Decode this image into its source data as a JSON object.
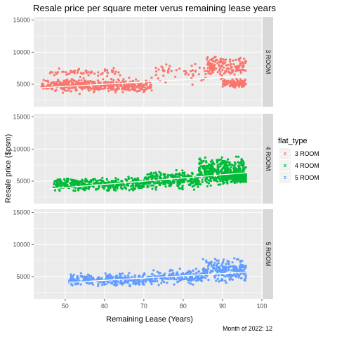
{
  "chart_data": {
    "type": "scatter",
    "title": "Resale price per square meter verus remaining lease years",
    "xlabel": "Remaining Lease (Years)",
    "ylabel": "Resale price ($psm)",
    "caption": "Month of 2022: 12",
    "xlim": [
      42,
      100
    ],
    "ylim": [
      1500,
      15500
    ],
    "x_ticks": [
      50,
      60,
      70,
      80,
      90,
      100
    ],
    "y_ticks": [
      5000,
      10000,
      15000
    ],
    "y_tick_labels": [
      "5000",
      "10000",
      "15000"
    ],
    "grid": true,
    "facet_by": "flat_type",
    "legend": {
      "title": "flat_type",
      "placement": "right",
      "items": [
        "3 ROOM",
        "4 ROOM",
        "5 ROOM"
      ]
    },
    "series": [
      {
        "name": "3 ROOM",
        "color": "#F8766D",
        "trend": [
          [
            44,
            4450
          ],
          [
            96,
            6250
          ]
        ],
        "clusters": [
          {
            "x": [
              44,
              72
            ],
            "y_center": 4800,
            "y_spread": 1400,
            "count": 460
          },
          {
            "x": [
              46,
              64
            ],
            "y_center": 6800,
            "y_spread": 900,
            "count": 60
          },
          {
            "x": [
              73,
              86
            ],
            "y_center": 6800,
            "y_spread": 2200,
            "count": 45
          },
          {
            "x": [
              86,
              96
            ],
            "y_center": 7800,
            "y_spread": 2300,
            "count": 150
          },
          {
            "x": [
              90,
              96
            ],
            "y_center": 5200,
            "y_spread": 800,
            "count": 110
          }
        ]
      },
      {
        "name": "4 ROOM",
        "color": "#00BA38",
        "trend": [
          [
            46,
            3800
          ],
          [
            96,
            6300
          ]
        ],
        "clusters": [
          {
            "x": [
              47,
              70
            ],
            "y_center": 4500,
            "y_spread": 1400,
            "count": 380
          },
          {
            "x": [
              70,
              84
            ],
            "y_center": 5200,
            "y_spread": 1800,
            "count": 280
          },
          {
            "x": [
              84,
              96
            ],
            "y_center": 6500,
            "y_spread": 2600,
            "count": 420
          },
          {
            "x": [
              90,
              96
            ],
            "y_center": 5600,
            "y_spread": 1200,
            "count": 160
          }
        ]
      },
      {
        "name": "5 ROOM",
        "color": "#619CFF",
        "trend": [
          [
            51,
            4100
          ],
          [
            96,
            5700
          ]
        ],
        "clusters": [
          {
            "x": [
              51,
              72
            ],
            "y_center": 4500,
            "y_spread": 1300,
            "count": 300
          },
          {
            "x": [
              72,
              85
            ],
            "y_center": 5000,
            "y_spread": 1500,
            "count": 170
          },
          {
            "x": [
              85,
              96
            ],
            "y_center": 6000,
            "y_spread": 2400,
            "count": 220
          }
        ]
      }
    ]
  }
}
